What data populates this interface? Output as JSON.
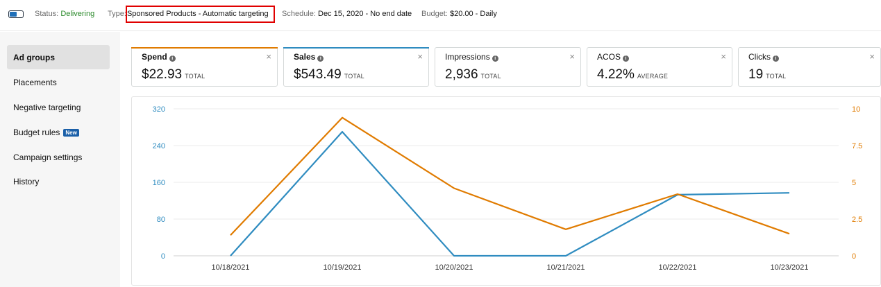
{
  "campaign": {
    "status_label": "Status:",
    "status_value": "Delivering",
    "type_label": "Type:",
    "type_value": "Sponsored Products - Automatic targeting",
    "schedule_label": "Schedule:",
    "schedule_value": "Dec 15, 2020 - No end date",
    "budget_label": "Budget:",
    "budget_value": "$20.00 - Daily",
    "enabled": true
  },
  "sidebar": {
    "items": [
      {
        "label": "Ad groups",
        "active": true
      },
      {
        "label": "Placements"
      },
      {
        "label": "Negative targeting"
      },
      {
        "label": "Budget rules",
        "badge": "New"
      },
      {
        "label": "Campaign settings"
      },
      {
        "label": "History"
      }
    ]
  },
  "metrics": [
    {
      "title": "Spend",
      "value": "$22.93",
      "unit": "TOTAL",
      "selected": true,
      "color": "#e07b00"
    },
    {
      "title": "Sales",
      "value": "$543.49",
      "unit": "TOTAL",
      "selected": true,
      "color": "#2f8cc0"
    },
    {
      "title": "Impressions",
      "value": "2,936",
      "unit": "TOTAL"
    },
    {
      "title": "ACOS",
      "value": "4.22%",
      "unit": "AVERAGE"
    },
    {
      "title": "Clicks",
      "value": "19",
      "unit": "TOTAL"
    }
  ],
  "chart_data": {
    "type": "line",
    "x": [
      "10/18/2021",
      "10/19/2021",
      "10/20/2021",
      "10/21/2021",
      "10/22/2021",
      "10/23/2021"
    ],
    "series": [
      {
        "name": "Sales",
        "axis": "left",
        "color": "#2f8cc0",
        "values": [
          0,
          270,
          0,
          0,
          133,
          137
        ]
      },
      {
        "name": "Spend",
        "axis": "right",
        "color": "#e07b00",
        "values": [
          1.4,
          9.4,
          4.6,
          1.8,
          4.2,
          1.5
        ]
      }
    ],
    "y_left": {
      "ticks": [
        "320",
        "240",
        "160",
        "80",
        "0"
      ],
      "range": [
        0,
        320
      ]
    },
    "y_right": {
      "ticks": [
        "10",
        "7.5",
        "5",
        "2.5",
        "0"
      ],
      "range": [
        0,
        10
      ]
    },
    "grid": true
  }
}
